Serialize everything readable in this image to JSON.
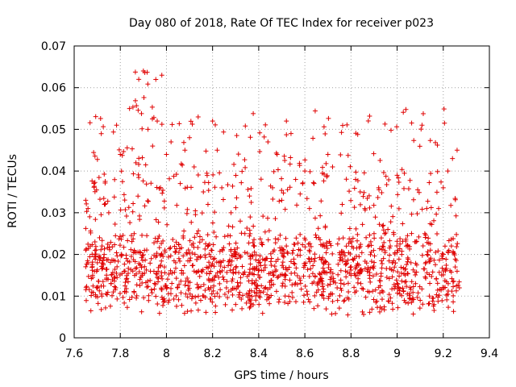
{
  "chart_data": {
    "type": "scatter",
    "title": "Day 080 of 2018, Rate Of TEC Index for receiver p023",
    "xlabel": "GPS time / hours",
    "ylabel": "ROTI / TECUs",
    "xlim": [
      7.6,
      9.4
    ],
    "ylim": [
      0,
      0.07
    ],
    "xticks": [
      7.6,
      7.8,
      8.0,
      8.2,
      8.4,
      8.6,
      8.8,
      9.0,
      9.2,
      9.4
    ],
    "xtick_labels": [
      "7.6",
      "7.8",
      "8",
      "8.2",
      "8.4",
      "8.6",
      "8.8",
      "9",
      "9.2",
      "9.4"
    ],
    "yticks": [
      0,
      0.01,
      0.02,
      0.03,
      0.04,
      0.05,
      0.06,
      0.07
    ],
    "ytick_labels": [
      "0",
      "0.01",
      "0.02",
      "0.03",
      "0.04",
      "0.05",
      "0.06",
      "0.07"
    ],
    "grid": true,
    "marker": "+",
    "marker_color": "#e00000",
    "x_range": [
      7.65,
      9.27
    ],
    "series_summary": "Dense scatter of many satellite ROTI tracks; bulk between 0.005 and 0.025 TECU/min, sparse arcs up to 0.065",
    "x": [
      7.65,
      7.66,
      7.67,
      7.68,
      7.69,
      7.7,
      7.71,
      7.72,
      7.73,
      7.74,
      7.75,
      7.76,
      7.78,
      7.8,
      7.82,
      7.84,
      7.86,
      7.88,
      7.9,
      7.92,
      7.94,
      7.96,
      7.98,
      8.0,
      8.02,
      8.04,
      8.06,
      8.08,
      8.1,
      8.12,
      8.14,
      8.16,
      8.18,
      8.2,
      8.22,
      8.24,
      8.26,
      8.28,
      8.3,
      8.32,
      8.34,
      8.36,
      8.38,
      8.4,
      8.42,
      8.44,
      8.46,
      8.48,
      8.5,
      8.52,
      8.54,
      8.56,
      8.58,
      8.6,
      8.62,
      8.64,
      8.66,
      8.68,
      8.7,
      8.72,
      8.74,
      8.76,
      8.78,
      8.8,
      8.82,
      8.84,
      8.86,
      8.88,
      8.9,
      8.92,
      8.94,
      8.96,
      8.98,
      9.0,
      9.02,
      9.04,
      9.06,
      9.08,
      9.1,
      9.12,
      9.14,
      9.16,
      9.18,
      9.2,
      9.22,
      9.24,
      9.26,
      9.27
    ],
    "y": [
      0.033,
      0.018,
      0.022,
      0.015,
      0.023,
      0.012,
      0.024,
      0.01,
      0.02,
      0.014,
      0.03,
      0.013,
      0.012,
      0.044,
      0.016,
      0.055,
      0.025,
      0.062,
      0.064,
      0.05,
      0.046,
      0.052,
      0.063,
      0.044,
      0.047,
      0.018,
      0.037,
      0.045,
      0.048,
      0.041,
      0.016,
      0.035,
      0.032,
      0.052,
      0.045,
      0.036,
      0.012,
      0.03,
      0.008,
      0.028,
      0.025,
      0.034,
      0.022,
      0.018,
      0.011,
      0.047,
      0.036,
      0.044,
      0.033,
      0.052,
      0.049,
      0.038,
      0.021,
      0.04,
      0.031,
      0.037,
      0.024,
      0.018,
      0.044,
      0.041,
      0.012,
      0.02,
      0.022,
      0.015,
      0.038,
      0.035,
      0.031,
      0.015,
      0.025,
      0.036,
      0.027,
      0.026,
      0.018,
      0.039,
      0.02,
      0.022,
      0.018,
      0.013,
      0.009,
      0.025,
      0.01,
      0.008,
      0.031,
      0.036,
      0.04,
      0.043,
      0.045,
      0.012
    ]
  },
  "colors": {
    "points": "#e00000",
    "grid": "#a0a0a0",
    "axes": "#000000"
  }
}
